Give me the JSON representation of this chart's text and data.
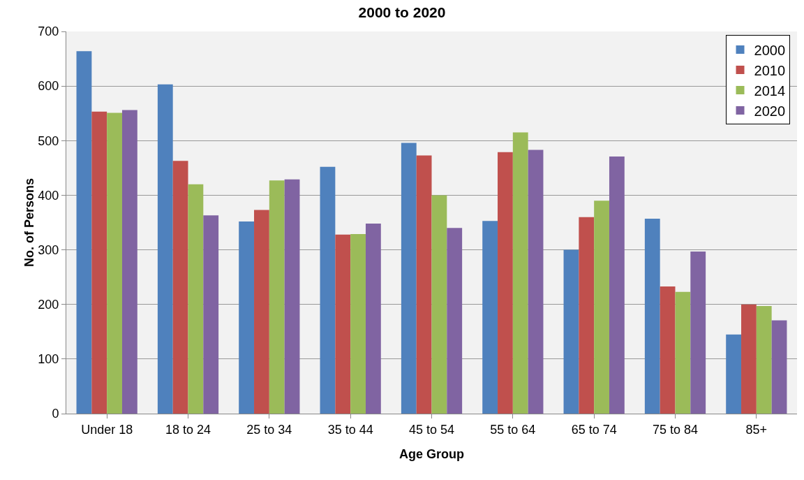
{
  "chart_data": {
    "type": "bar",
    "title": "2000 to 2020",
    "xlabel": "Age Group",
    "ylabel": "No. of Persons",
    "categories": [
      "Under 18",
      "18 to 24",
      "25 to 34",
      "35 to 44",
      "45 to 54",
      "55 to 64",
      "65 to 74",
      "75 to 84",
      "85+"
    ],
    "series": [
      {
        "name": "2000",
        "color": "#4f81bd",
        "values": [
          664,
          603,
          352,
          452,
          496,
          353,
          300,
          357,
          145
        ]
      },
      {
        "name": "2010",
        "color": "#c0504d",
        "values": [
          553,
          463,
          373,
          328,
          473,
          479,
          360,
          233,
          200
        ]
      },
      {
        "name": "2014",
        "color": "#9bbb59",
        "values": [
          551,
          420,
          427,
          329,
          400,
          515,
          390,
          223,
          197
        ]
      },
      {
        "name": "2020",
        "color": "#8064a2",
        "values": [
          556,
          363,
          429,
          348,
          340,
          483,
          471,
          297,
          171
        ]
      }
    ],
    "ylim": [
      0,
      700
    ],
    "yticks": [
      0,
      100,
      200,
      300,
      400,
      500,
      600,
      700
    ],
    "grid": "y",
    "legend": "top right"
  }
}
